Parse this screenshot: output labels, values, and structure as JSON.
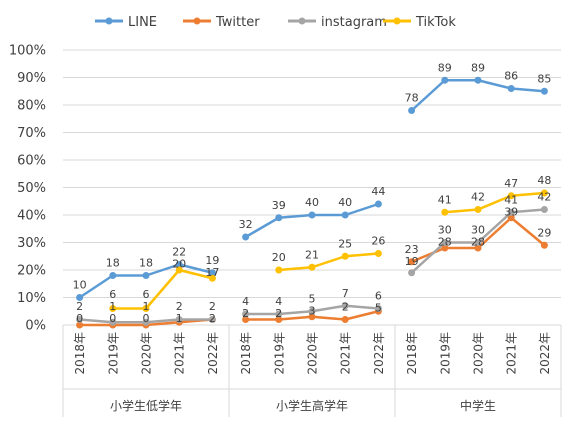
{
  "chart_data": {
    "type": "line",
    "ylim": [
      0,
      100
    ],
    "y_tick_labels": [
      "0%",
      "10%",
      "20%",
      "30%",
      "40%",
      "50%",
      "60%",
      "70%",
      "80%",
      "90%",
      "100%"
    ],
    "grid": true,
    "legend_position": "top",
    "groups": [
      {
        "name": "小学生低学年",
        "categories": [
          "2018年",
          "2019年",
          "2020年",
          "2021年",
          "2022年"
        ]
      },
      {
        "name": "小学生高学年",
        "categories": [
          "2018年",
          "2019年",
          "2020年",
          "2021年",
          "2022年"
        ]
      },
      {
        "name": "中学生",
        "categories": [
          "2018年",
          "2019年",
          "2020年",
          "2021年",
          "2022年"
        ]
      }
    ],
    "series": [
      {
        "name": "LINE",
        "color": "#5b9bd5",
        "values": [
          [
            10,
            18,
            18,
            22,
            19
          ],
          [
            32,
            39,
            40,
            40,
            44
          ],
          [
            78,
            89,
            89,
            86,
            85
          ]
        ]
      },
      {
        "name": "Twitter",
        "color": "#ed7d31",
        "values": [
          [
            0,
            0,
            0,
            1,
            2
          ],
          [
            2,
            2,
            3,
            2,
            5
          ],
          [
            23,
            28,
            28,
            39,
            29
          ]
        ]
      },
      {
        "name": "instagram",
        "color": "#a5a5a5",
        "values": [
          [
            2,
            1,
            1,
            2,
            2
          ],
          [
            4,
            4,
            5,
            7,
            6
          ],
          [
            19,
            30,
            30,
            41,
            42
          ]
        ]
      },
      {
        "name": "TikTok",
        "color": "#ffc000",
        "values": [
          [
            null,
            6,
            6,
            20,
            17
          ],
          [
            null,
            20,
            21,
            25,
            26
          ],
          [
            null,
            41,
            42,
            47,
            48
          ]
        ]
      }
    ]
  }
}
